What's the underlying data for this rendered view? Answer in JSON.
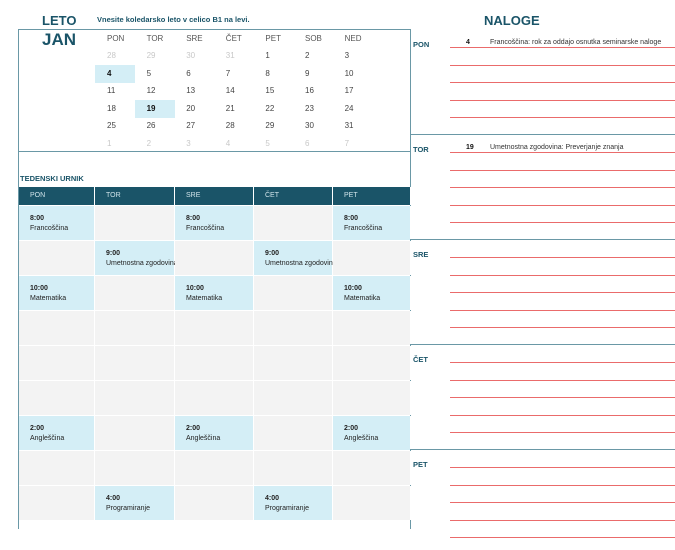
{
  "header": {
    "year_label": "LETO",
    "hint": "Vnesite koledarsko leto v celico B1 na levi.",
    "tasks_title": "NALOGE"
  },
  "calendar": {
    "month": "JAN",
    "weekdays": [
      "PON",
      "TOR",
      "SRE",
      "ČET",
      "PET",
      "SOB",
      "NED"
    ],
    "weeks": [
      [
        "28",
        "29",
        "30",
        "31",
        "1",
        "2",
        "3"
      ],
      [
        "4",
        "5",
        "6",
        "7",
        "8",
        "9",
        "10"
      ],
      [
        "11",
        "12",
        "13",
        "14",
        "15",
        "16",
        "17"
      ],
      [
        "18",
        "19",
        "20",
        "21",
        "22",
        "23",
        "24"
      ],
      [
        "25",
        "26",
        "27",
        "28",
        "29",
        "30",
        "31"
      ],
      [
        "1",
        "2",
        "3",
        "4",
        "5",
        "6",
        "7"
      ]
    ],
    "highlighted": [
      "4",
      "19"
    ]
  },
  "schedule": {
    "title": "TEDENSKI URNIK",
    "days": [
      "PON",
      "TOR",
      "SRE",
      "ČET",
      "PET"
    ],
    "rows": [
      [
        {
          "time": "8:00",
          "subject": "Francoščina"
        },
        null,
        {
          "time": "8:00",
          "subject": "Francoščina"
        },
        null,
        {
          "time": "8:00",
          "subject": "Francoščina"
        }
      ],
      [
        null,
        {
          "time": "9:00",
          "subject": "Umetnostna zgodovina"
        },
        null,
        {
          "time": "9:00",
          "subject": "Umetnostna zgodovina"
        },
        null
      ],
      [
        {
          "time": "10:00",
          "subject": "Matematika"
        },
        null,
        {
          "time": "10:00",
          "subject": "Matematika"
        },
        null,
        {
          "time": "10:00",
          "subject": "Matematika"
        }
      ],
      [
        null,
        null,
        null,
        null,
        null
      ],
      [
        null,
        null,
        null,
        null,
        null
      ],
      [
        null,
        null,
        null,
        null,
        null
      ],
      [
        {
          "time": "2:00",
          "subject": "Angleščina"
        },
        null,
        {
          "time": "2:00",
          "subject": "Angleščina"
        },
        null,
        {
          "time": "2:00",
          "subject": "Angleščina"
        }
      ],
      [
        null,
        null,
        null,
        null,
        null
      ],
      [
        null,
        {
          "time": "4:00",
          "subject": "Programiranje"
        },
        null,
        {
          "time": "4:00",
          "subject": "Programiranje"
        },
        null
      ]
    ]
  },
  "tasks": [
    {
      "day": "PON",
      "date": "4",
      "text": "Francoščina: rok za oddajo osnutka seminarske naloge"
    },
    {
      "day": "TOR",
      "date": "19",
      "text": "Umetnostna zgodovina: Preverjanje znanja"
    },
    {
      "day": "SRE",
      "date": "",
      "text": ""
    },
    {
      "day": "ČET",
      "date": "",
      "text": ""
    },
    {
      "day": "PET",
      "date": "",
      "text": ""
    }
  ],
  "colors": {
    "accent": "#1a5468",
    "highlight": "#d4eef6",
    "line": "#ea6b6b",
    "border": "#6a98a6"
  }
}
